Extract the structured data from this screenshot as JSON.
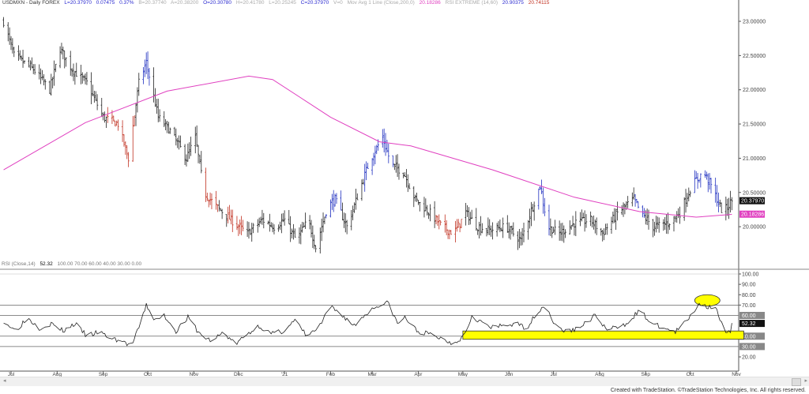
{
  "header": {
    "symbol": "USDMXN - Daily  FOREX",
    "last": "L=20.37970",
    "change": "0.07475",
    "pct": "0.37%",
    "bid": "B=20.37740",
    "ask": "A=20.38200",
    "open": "O=20.30780",
    "high": "H=20.41780",
    "low": "L=20.25245",
    "close": "C=20.37970",
    "volume": "V=0",
    "ma_label": "Mov Avg 1 Line (Close,200,0)",
    "ma_value": "20.18286",
    "rsi_ext_label": "RSI EXTREME (14,60)",
    "rsi_ext_v1": "20.90375",
    "rsi_ext_v2": "20.74115"
  },
  "rsi_header": {
    "label": "RSI (Close,14)",
    "value": "52.32",
    "levels": "100.00  70.00  60.00  40.00  30.00  0.00"
  },
  "footer": "Created with TradeStation. ©TradeStation Technologies, Inc. All rights reserved.",
  "colors": {
    "ma": "#e040c0",
    "up_rsi": "#2030c0",
    "down_rsi": "#c03020",
    "bars": "#222222",
    "highlight": "#ffff00"
  },
  "chart_data": [
    {
      "type": "ohlc",
      "title": "USDMXN - Daily",
      "ylim": [
        19.5,
        23.3
      ],
      "yticks": [
        "23.00000",
        "22.50000",
        "22.00000",
        "21.50000",
        "21.00000",
        "20.50000",
        "20.00000"
      ],
      "ytick_values": [
        23,
        22.5,
        22,
        21.5,
        21,
        20.5,
        20
      ],
      "xticks": [
        "Jul",
        "Aug",
        "Sep",
        "Oct",
        "Nov",
        "Dec",
        "'21",
        "Feb",
        "Mar",
        "Apr",
        "May",
        "Jun",
        "Jul",
        "Aug",
        "Sep",
        "Oct",
        "Nov"
      ],
      "xtick_dates": [
        "2020-07-01",
        "2020-08-01",
        "2020-09-01",
        "2020-10-01",
        "2020-11-01",
        "2020-12-01",
        "2021-01-01",
        "2021-02-01",
        "2021-03-01",
        "2021-04-01",
        "2021-05-01",
        "2021-06-01",
        "2021-07-01",
        "2021-08-01",
        "2021-09-01",
        "2021-10-01",
        "2021-11-01"
      ],
      "close_path": [
        [
          "2020-06-26",
          23.0
        ],
        [
          "2020-07-03",
          22.5
        ],
        [
          "2020-07-16",
          22.3
        ],
        [
          "2020-07-27",
          22.0
        ],
        [
          "2020-08-03",
          22.6
        ],
        [
          "2020-08-11",
          22.3
        ],
        [
          "2020-08-21",
          22.1
        ],
        [
          "2020-09-01",
          21.6
        ],
        [
          "2020-09-11",
          21.5
        ],
        [
          "2020-09-18",
          21.0
        ],
        [
          "2020-09-25",
          22.1
        ],
        [
          "2020-09-30",
          22.4
        ],
        [
          "2020-10-08",
          21.6
        ],
        [
          "2020-10-16",
          21.4
        ],
        [
          "2020-10-27",
          21.0
        ],
        [
          "2020-11-02",
          21.3
        ],
        [
          "2020-11-08",
          20.5
        ],
        [
          "2020-11-16",
          20.3
        ],
        [
          "2020-11-26",
          20.1
        ],
        [
          "2020-12-07",
          19.9
        ],
        [
          "2020-12-17",
          20.1
        ],
        [
          "2020-12-25",
          20.0
        ],
        [
          "2021-01-01",
          20.1
        ],
        [
          "2021-01-09",
          19.8
        ],
        [
          "2021-01-17",
          20.1
        ],
        [
          "2021-01-22",
          19.7
        ],
        [
          "2021-01-30",
          20.3
        ],
        [
          "2021-02-04",
          20.4
        ],
        [
          "2021-02-12",
          20.0
        ],
        [
          "2021-02-20",
          20.5
        ],
        [
          "2021-02-28",
          21.0
        ],
        [
          "2021-03-08",
          21.3
        ],
        [
          "2021-03-14",
          20.9
        ],
        [
          "2021-03-22",
          20.8
        ],
        [
          "2021-03-30",
          20.4
        ],
        [
          "2021-04-09",
          20.2
        ],
        [
          "2021-04-17",
          20.0
        ],
        [
          "2021-04-25",
          19.9
        ],
        [
          "2021-05-03",
          20.2
        ],
        [
          "2021-05-11",
          20.0
        ],
        [
          "2021-05-19",
          19.95
        ],
        [
          "2021-05-30",
          20.0
        ],
        [
          "2021-06-09",
          19.8
        ],
        [
          "2021-06-17",
          20.3
        ],
        [
          "2021-06-22",
          20.6
        ],
        [
          "2021-06-27",
          20.0
        ],
        [
          "2021-07-05",
          19.9
        ],
        [
          "2021-07-15",
          20.05
        ],
        [
          "2021-07-26",
          20.1
        ],
        [
          "2021-08-03",
          19.9
        ],
        [
          "2021-08-13",
          20.2
        ],
        [
          "2021-08-24",
          20.4
        ],
        [
          "2021-08-29",
          20.2
        ],
        [
          "2021-09-06",
          20.0
        ],
        [
          "2021-09-16",
          20.05
        ],
        [
          "2021-09-24",
          20.2
        ],
        [
          "2021-10-02",
          20.6
        ],
        [
          "2021-10-10",
          20.8
        ],
        [
          "2021-10-15",
          20.6
        ],
        [
          "2021-10-23",
          20.2
        ],
        [
          "2021-10-29",
          20.38
        ]
      ],
      "ma200": {
        "label": "Mov Avg 1 Line (Close,200,0)",
        "path": [
          [
            "2020-06-26",
            20.83
          ],
          [
            "2020-08-20",
            21.52
          ],
          [
            "2020-10-14",
            21.98
          ],
          [
            "2020-12-08",
            22.2
          ],
          [
            "2020-12-24",
            22.15
          ],
          [
            "2021-02-01",
            21.6
          ],
          [
            "2021-03-06",
            21.24
          ],
          [
            "2021-03-27",
            21.18
          ],
          [
            "2021-05-21",
            20.83
          ],
          [
            "2021-07-15",
            20.43
          ],
          [
            "2021-08-28",
            20.22
          ],
          [
            "2021-10-05",
            20.14
          ],
          [
            "2021-10-29",
            20.18
          ]
        ]
      },
      "last_price": 20.3797,
      "ma_last": 20.18286
    },
    {
      "type": "line",
      "title": "RSI (Close,14)",
      "ylim": [
        0,
        100
      ],
      "yticks": [
        "100.00",
        "90.00",
        "80.00",
        "70.00",
        "60.00",
        "52.32",
        "40.00",
        "30.00",
        "20.00"
      ],
      "levels": [
        100,
        70,
        60,
        40,
        30
      ],
      "path": [
        [
          "2020-06-26",
          55
        ],
        [
          "2020-07-04",
          45
        ],
        [
          "2020-07-12",
          58
        ],
        [
          "2020-07-20",
          48
        ],
        [
          "2020-07-28",
          52
        ],
        [
          "2020-08-05",
          45
        ],
        [
          "2020-08-13",
          52
        ],
        [
          "2020-08-21",
          40
        ],
        [
          "2020-08-29",
          44
        ],
        [
          "2020-09-06",
          38
        ],
        [
          "2020-09-14",
          35
        ],
        [
          "2020-09-20",
          30
        ],
        [
          "2020-09-25",
          48
        ],
        [
          "2020-09-30",
          70
        ],
        [
          "2020-10-06",
          55
        ],
        [
          "2020-10-12",
          60
        ],
        [
          "2020-10-20",
          45
        ],
        [
          "2020-10-28",
          58
        ],
        [
          "2020-11-05",
          42
        ],
        [
          "2020-11-13",
          35
        ],
        [
          "2020-11-21",
          44
        ],
        [
          "2020-11-29",
          32
        ],
        [
          "2020-12-07",
          42
        ],
        [
          "2020-12-15",
          50
        ],
        [
          "2020-12-23",
          42
        ],
        [
          "2020-12-31",
          45
        ],
        [
          "2021-01-08",
          55
        ],
        [
          "2021-01-16",
          40
        ],
        [
          "2021-01-24",
          48
        ],
        [
          "2021-02-01",
          68
        ],
        [
          "2021-02-09",
          60
        ],
        [
          "2021-02-17",
          50
        ],
        [
          "2021-02-25",
          62
        ],
        [
          "2021-03-05",
          70
        ],
        [
          "2021-03-12",
          72
        ],
        [
          "2021-03-18",
          52
        ],
        [
          "2021-03-23",
          58
        ],
        [
          "2021-03-31",
          45
        ],
        [
          "2021-04-08",
          42
        ],
        [
          "2021-04-16",
          38
        ],
        [
          "2021-04-24",
          33
        ],
        [
          "2021-05-02",
          40
        ],
        [
          "2021-05-07",
          60
        ],
        [
          "2021-05-12",
          55
        ],
        [
          "2021-05-20",
          48
        ],
        [
          "2021-05-28",
          50
        ],
        [
          "2021-06-05",
          52
        ],
        [
          "2021-06-13",
          48
        ],
        [
          "2021-06-21",
          65
        ],
        [
          "2021-06-26",
          70
        ],
        [
          "2021-07-02",
          50
        ],
        [
          "2021-07-10",
          44
        ],
        [
          "2021-07-18",
          48
        ],
        [
          "2021-07-29",
          60
        ],
        [
          "2021-08-06",
          46
        ],
        [
          "2021-08-17",
          50
        ],
        [
          "2021-08-28",
          65
        ],
        [
          "2021-09-05",
          52
        ],
        [
          "2021-09-13",
          48
        ],
        [
          "2021-09-21",
          44
        ],
        [
          "2021-09-29",
          55
        ],
        [
          "2021-10-07",
          72
        ],
        [
          "2021-10-12",
          68
        ],
        [
          "2021-10-18",
          70
        ],
        [
          "2021-10-23",
          48
        ],
        [
          "2021-10-26",
          42
        ],
        [
          "2021-10-28",
          44
        ],
        [
          "2021-10-29",
          52.32
        ]
      ],
      "last_value": 52.32,
      "annotations": [
        {
          "type": "rectangle",
          "y_range": [
            37,
            45
          ],
          "x_range": [
            "2021-05-01",
            "2021-11-06"
          ]
        },
        {
          "type": "ellipse",
          "x_range": [
            "2021-10-04",
            "2021-10-21"
          ],
          "y_range": [
            69,
            80
          ]
        }
      ]
    }
  ]
}
